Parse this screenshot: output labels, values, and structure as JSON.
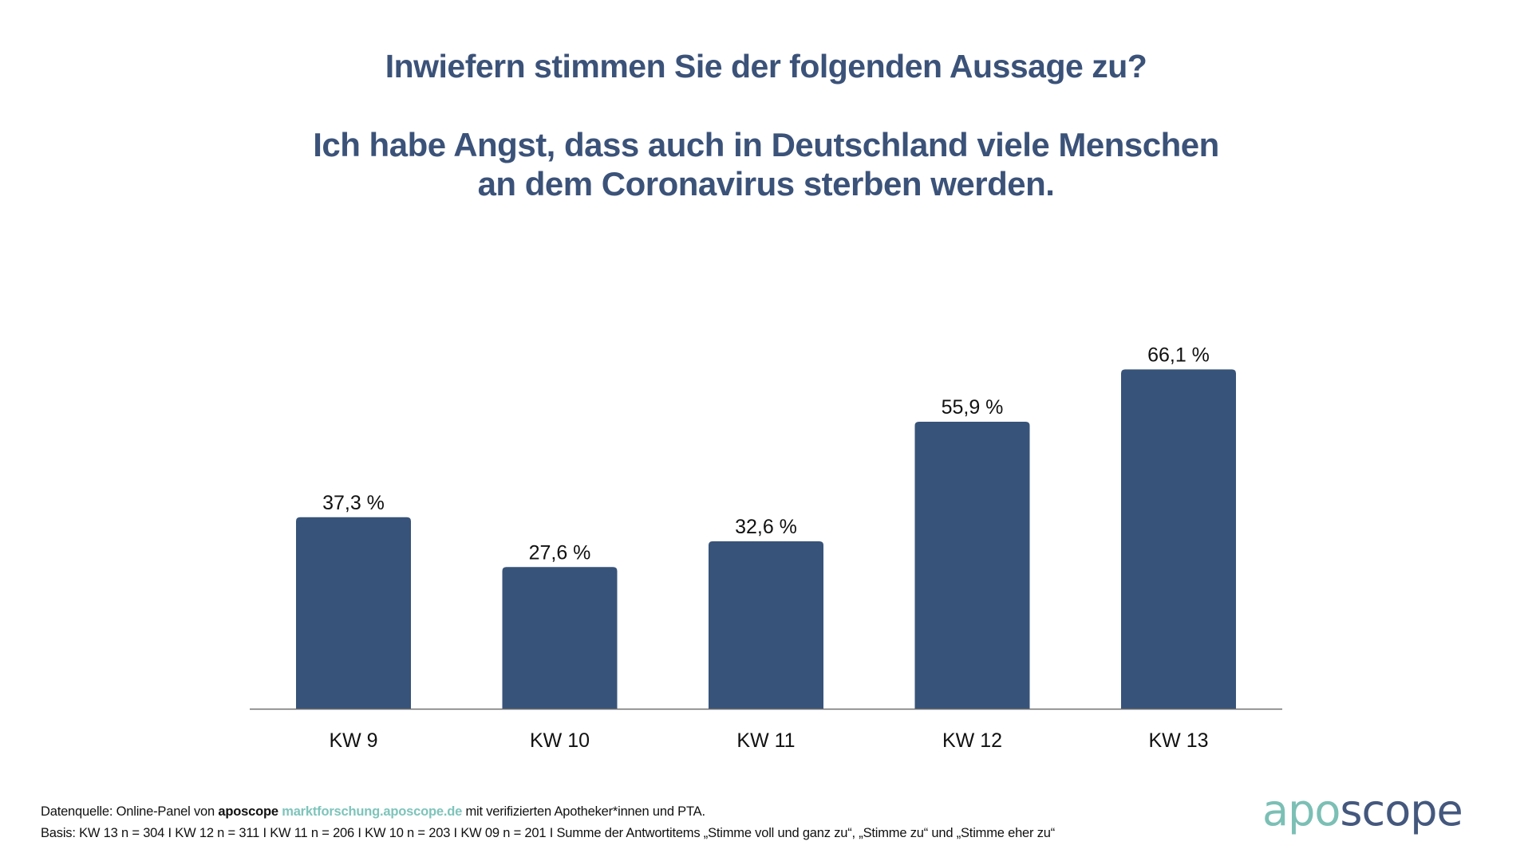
{
  "title": {
    "question": "Inwiefern stimmen Sie der folgenden Aussage zu?",
    "statement_line_1": "Ich habe Angst, dass auch in Deutschland viele Menschen",
    "statement_line_2": "an dem Coronavirus sterben werden."
  },
  "chart_data": {
    "type": "bar",
    "title": "Inwiefern stimmen Sie der folgenden Aussage zu? Ich habe Angst, dass auch in Deutschland viele Menschen an dem Coronavirus sterben werden.",
    "categories": [
      "KW 9",
      "KW 10",
      "KW 11",
      "KW 12",
      "KW 13"
    ],
    "values": [
      37.3,
      27.6,
      32.6,
      55.9,
      66.1
    ],
    "value_labels": [
      "37,3 %",
      "27,6 %",
      "32,6 %",
      "55,9 %",
      "66,1 %"
    ],
    "xlabel": "",
    "ylabel": "",
    "ylim": [
      0,
      100
    ],
    "unit": "%",
    "grid": false,
    "legend": "none",
    "bar_color": "#37537a",
    "axis_color": "#707070"
  },
  "footer": {
    "line_1": {
      "prefix": "Datenquelle: Online-Panel von ",
      "brand": "aposcope",
      "link": "marktforschung.aposcope.de",
      "suffix": " mit verifizierten Apotheker*innen und PTA."
    },
    "line_2": "Basis: KW 13 n = 304 I KW 12 n = 311 I KW 11 n = 206 I KW 10 n = 203 I KW 09 n = 201 I Summe der Antwortitems „Stimme voll und ganz zu“, „Stimme zu“ und „Stimme eher zu“"
  },
  "logo": {
    "part_1": "apo",
    "part_2": "scope",
    "color_1": "#7bbfb5",
    "color_2": "#44587e"
  }
}
